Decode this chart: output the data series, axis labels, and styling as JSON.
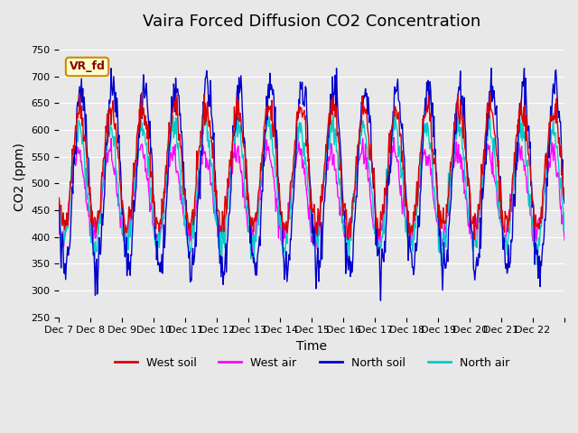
{
  "title": "Vaira Forced Diffusion CO2 Concentration",
  "xlabel": "Time",
  "ylabel": "CO2 (ppm)",
  "ylim": [
    250,
    775
  ],
  "yticks": [
    250,
    300,
    350,
    400,
    450,
    500,
    550,
    600,
    650,
    700,
    750
  ],
  "n_days": 16,
  "pts_per_day": 48,
  "colors": {
    "west_soil": "#dd0000",
    "west_air": "#ff00ff",
    "north_soil": "#0000cc",
    "north_air": "#00cccc"
  },
  "legend_labels": [
    "West soil",
    "West air",
    "North soil",
    "North air"
  ],
  "annotation_text": "VR_fd",
  "bg_color": "#e8e8e8",
  "xtick_labels": [
    "Dec 7",
    "Dec 8",
    "Dec 9",
    "Dec 10",
    "Dec 11",
    "Dec 12",
    "Dec 13",
    "Dec 14",
    "Dec 15",
    "Dec 16",
    "Dec 17",
    "Dec 18",
    "Dec 19",
    "Dec 20",
    "Dec 21",
    "Dec 22",
    ""
  ],
  "linewidth": 1.0,
  "title_fontsize": 13,
  "axis_fontsize": 10,
  "tick_fontsize": 8,
  "legend_fontsize": 9,
  "seed": 42,
  "west_soil_base": 530,
  "west_soil_amp": 110,
  "west_soil_phase": 0.1,
  "west_soil_noise": 15,
  "west_soil_clip": [
    295,
    670
  ],
  "west_air_base": 478,
  "west_air_amp": 80,
  "west_air_phase": 0.15,
  "west_air_noise": 12,
  "west_air_clip": [
    285,
    610
  ],
  "north_soil_base": 510,
  "north_soil_amp": 170,
  "north_soil_phase": 0.05,
  "north_soil_noise": 20,
  "north_soil_clip": [
    280,
    715
  ],
  "north_air_base": 495,
  "north_air_amp": 110,
  "north_air_phase": 0.12,
  "north_air_noise": 15,
  "north_air_clip": [
    285,
    655
  ]
}
